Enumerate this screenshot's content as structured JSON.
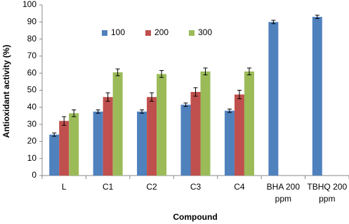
{
  "chart_data": {
    "type": "bar",
    "x_label": "Compound",
    "y_label": "Antioxidant activity (%)",
    "categories": [
      "L",
      "C1",
      "C2",
      "C3",
      "C4",
      "BHA 200 ppm",
      "TBHQ 200 ppm"
    ],
    "series": [
      {
        "name": "100",
        "color": "#4f81bd",
        "values": [
          24,
          37.5,
          37.5,
          41.5,
          38,
          90,
          93
        ],
        "errors": [
          1,
          1,
          1,
          1,
          1,
          1,
          1
        ]
      },
      {
        "name": "200",
        "color": "#c0504d",
        "values": [
          32,
          46,
          46,
          49,
          47.5,
          null,
          null
        ],
        "errors": [
          2.5,
          2.5,
          2.5,
          2.5,
          2.5,
          null,
          null
        ]
      },
      {
        "name": "300",
        "color": "#9bbb59",
        "values": [
          36.5,
          60.5,
          59.5,
          61,
          61,
          null,
          null
        ],
        "errors": [
          2,
          2,
          2,
          2,
          2,
          null,
          null
        ]
      }
    ],
    "ylim": [
      0,
      100
    ],
    "yticks": [
      0,
      10,
      20,
      30,
      40,
      50,
      60,
      70,
      80,
      90,
      100
    ],
    "grid": false,
    "legend": "top"
  }
}
